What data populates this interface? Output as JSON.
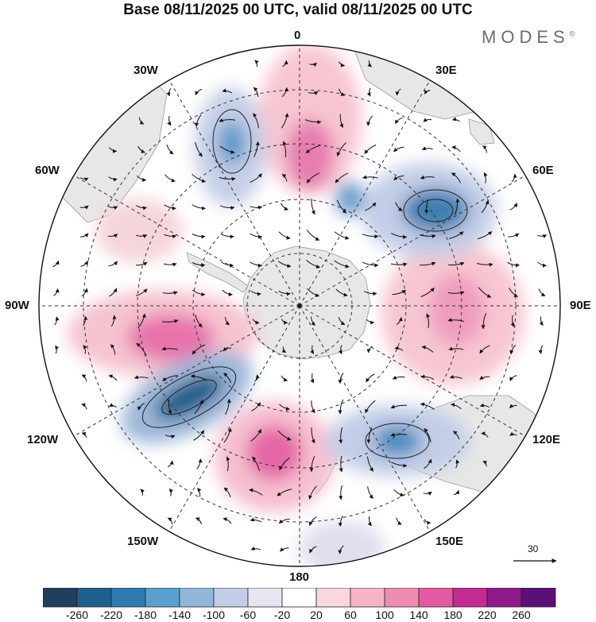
{
  "title": "Base 08/11/2025 00 UTC, valid 08/11/2025 00 UTC",
  "brand": {
    "name": "MODES",
    "mark": "©"
  },
  "longitude_labels": {
    "lon_0": "0",
    "lon_30e": "30E",
    "lon_60e": "60E",
    "lon_90e": "90E",
    "lon_120e": "120E",
    "lon_150e": "150E",
    "lon_180": "180",
    "lon_150w": "150W",
    "lon_120w": "120W",
    "lon_90w": "90W",
    "lon_60w": "60W",
    "lon_30w": "30W"
  },
  "vector_reference": {
    "value": "30"
  },
  "colorbar": {
    "ticks": [
      "-260",
      "-220",
      "-180",
      "-140",
      "-100",
      "-60",
      "-20",
      "20",
      "60",
      "100",
      "140",
      "180",
      "220",
      "260"
    ],
    "colors": [
      "#1e3f5e",
      "#1f5f8b",
      "#2d7bb1",
      "#5a9fcd",
      "#91b8da",
      "#c3cde7",
      "#e6e6f2",
      "#ffffff",
      "#f9d7dc",
      "#f5b5c4",
      "#ef8cb1",
      "#e35aa2",
      "#c32a92",
      "#8c1a8a",
      "#5b1078"
    ]
  },
  "projection": "south-polar-stereographic",
  "field": "geopotential height anomaly and wind vectors"
}
